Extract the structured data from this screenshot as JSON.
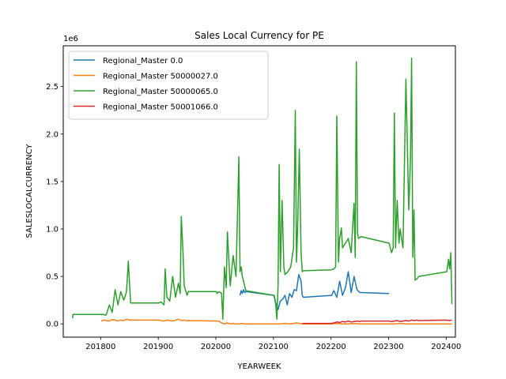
{
  "chart_data": {
    "type": "line",
    "title": "Sales Local Currency for PE",
    "xlabel": "YEARWEEK",
    "ylabel": "SALESLOCALCURRENCY",
    "y_offset_label": "1e6",
    "xlim": [
      201735,
      202416
    ],
    "ylim": [
      -0.14,
      2.93
    ],
    "xticks": [
      201800,
      201900,
      202000,
      202100,
      202200,
      202300,
      202400
    ],
    "xtick_labels": [
      "201800",
      "201900",
      "202000",
      "202100",
      "202200",
      "202300",
      "202400"
    ],
    "yticks": [
      0.0,
      0.5,
      1.0,
      1.5,
      2.0,
      2.5
    ],
    "ytick_labels": [
      "0.0",
      "0.5",
      "1.0",
      "1.5",
      "2.0",
      "2.5"
    ],
    "legend_position": "upper-left",
    "grid": false,
    "series": [
      {
        "name": "Regional_Master 0.0",
        "color": "#1f77b4",
        "x": [
          202042,
          202044,
          202046,
          202048,
          202050,
          202052,
          202101,
          202104,
          202108,
          202112,
          202116,
          202120,
          202124,
          202128,
          202132,
          202136,
          202140,
          202144,
          202148,
          202150,
          202152,
          202201,
          202205,
          202210,
          202215,
          202220,
          202225,
          202230,
          202235,
          202240,
          202245,
          202250,
          202252,
          202301
        ],
        "values": [
          0.3,
          0.35,
          0.32,
          0.36,
          0.33,
          0.34,
          0.3,
          0.22,
          0.15,
          0.24,
          0.26,
          0.3,
          0.2,
          0.32,
          0.28,
          0.36,
          0.35,
          0.52,
          0.45,
          0.3,
          0.28,
          0.3,
          0.35,
          0.28,
          0.45,
          0.3,
          0.38,
          0.55,
          0.33,
          0.5,
          0.36,
          0.33,
          0.33,
          0.32
        ]
      },
      {
        "name": "Regional_Master 50000027.0",
        "color": "#ff7f0e",
        "x": [
          201801,
          201805,
          201810,
          201815,
          201820,
          201825,
          201830,
          201835,
          201840,
          201845,
          201850,
          201852,
          201901,
          201905,
          201910,
          201915,
          201920,
          201925,
          201930,
          201935,
          201940,
          201945,
          201950,
          201952,
          202001,
          202005,
          202010,
          202015,
          202020,
          202025,
          202030,
          202035,
          202040,
          202045,
          202050,
          202052,
          202101,
          202110,
          202120,
          202130,
          202140,
          202150,
          202201,
          202210,
          202220,
          202230,
          202240,
          202250,
          202301,
          202310,
          202320,
          202330,
          202340,
          202350,
          202401,
          202410
        ],
        "values": [
          0.03,
          0.04,
          0.035,
          0.03,
          0.045,
          0.04,
          0.03,
          0.04,
          0.035,
          0.05,
          0.04,
          0.04,
          0.04,
          0.035,
          0.03,
          0.04,
          0.035,
          0.03,
          0.04,
          0.05,
          0.035,
          0.04,
          0.03,
          0.035,
          0.03,
          0.03,
          0.01,
          0.0,
          0.01,
          0.0,
          0.005,
          0.0,
          0.0,
          0.005,
          0.0,
          0.0,
          0.0,
          0.0,
          0.005,
          0.0,
          0.01,
          0.0,
          0.0,
          0.005,
          0.0,
          0.0,
          0.005,
          0.0,
          0.0,
          0.0,
          0.005,
          0.0,
          0.0,
          0.0,
          0.0,
          0.0
        ]
      },
      {
        "name": "Regional_Master 50000065.0",
        "color": "#2ca02c",
        "x": [
          201751,
          201752,
          201801,
          201805,
          201808,
          201810,
          201815,
          201820,
          201825,
          201830,
          201835,
          201840,
          201843,
          201845,
          201848,
          201852,
          201901,
          201905,
          201910,
          201912,
          201915,
          201920,
          201925,
          201930,
          201935,
          201938,
          201940,
          201943,
          201945,
          201950,
          201952,
          202001,
          202002,
          202005,
          202010,
          202012,
          202015,
          202018,
          202020,
          202025,
          202030,
          202035,
          202040,
          202042,
          202044,
          202046,
          202048,
          202050,
          202052,
          202101,
          202104,
          202106,
          202108,
          202110,
          202112,
          202115,
          202118,
          202120,
          202125,
          202130,
          202135,
          202138,
          202140,
          202142,
          202145,
          202148,
          202150,
          202152,
          202201,
          202205,
          202208,
          202210,
          202213,
          202215,
          202218,
          202220,
          202225,
          202230,
          202235,
          202240,
          202242,
          202244,
          202246,
          202248,
          202250,
          202252,
          202301,
          202305,
          202308,
          202310,
          202312,
          202315,
          202318,
          202320,
          202325,
          202330,
          202335,
          202338,
          202340,
          202342,
          202344,
          202346,
          202348,
          202350,
          202352,
          202401,
          202404,
          202406,
          202408,
          202410
        ],
        "values": [
          0.06,
          0.1,
          0.1,
          0.1,
          0.09,
          0.1,
          0.2,
          0.12,
          0.36,
          0.2,
          0.34,
          0.25,
          0.3,
          0.35,
          0.66,
          0.22,
          0.22,
          0.23,
          0.2,
          0.58,
          0.28,
          0.24,
          0.5,
          0.28,
          0.43,
          0.32,
          1.13,
          0.75,
          0.4,
          0.3,
          0.34,
          0.34,
          0.32,
          0.34,
          0.32,
          0.05,
          0.6,
          0.38,
          0.97,
          0.4,
          0.72,
          0.5,
          1.76,
          0.55,
          0.6,
          0.5,
          0.45,
          0.4,
          0.35,
          0.3,
          0.2,
          0.05,
          0.4,
          1.68,
          0.55,
          1.3,
          0.6,
          0.52,
          0.55,
          0.6,
          0.8,
          2.25,
          0.65,
          1.0,
          1.84,
          0.75,
          0.55,
          0.56,
          0.57,
          0.58,
          0.6,
          2.19,
          0.65,
          0.9,
          1.01,
          0.8,
          0.85,
          0.9,
          0.75,
          1.27,
          0.7,
          2.76,
          0.95,
          0.9,
          0.91,
          0.92,
          0.85,
          0.75,
          0.8,
          2.22,
          0.8,
          1.3,
          0.85,
          1.0,
          0.8,
          2.58,
          1.2,
          1.74,
          2.8,
          0.7,
          1.2,
          0.46,
          0.47,
          0.48,
          0.5,
          0.55,
          0.68,
          0.58,
          0.75,
          0.21
        ]
      },
      {
        "name": "Regional_Master 50001066.0",
        "color": "#d62728",
        "x": [
          202150,
          202152,
          202201,
          202205,
          202210,
          202215,
          202220,
          202225,
          202230,
          202235,
          202240,
          202245,
          202250,
          202252,
          202301,
          202305,
          202310,
          202315,
          202320,
          202325,
          202330,
          202335,
          202340,
          202345,
          202350,
          202352,
          202401,
          202405,
          202410
        ],
        "values": [
          0.0,
          0.005,
          0.005,
          0.01,
          0.02,
          0.015,
          0.025,
          0.02,
          0.03,
          0.02,
          0.025,
          0.03,
          0.025,
          0.03,
          0.03,
          0.025,
          0.03,
          0.035,
          0.025,
          0.03,
          0.035,
          0.03,
          0.04,
          0.035,
          0.04,
          0.035,
          0.04,
          0.035,
          0.04
        ]
      }
    ]
  }
}
